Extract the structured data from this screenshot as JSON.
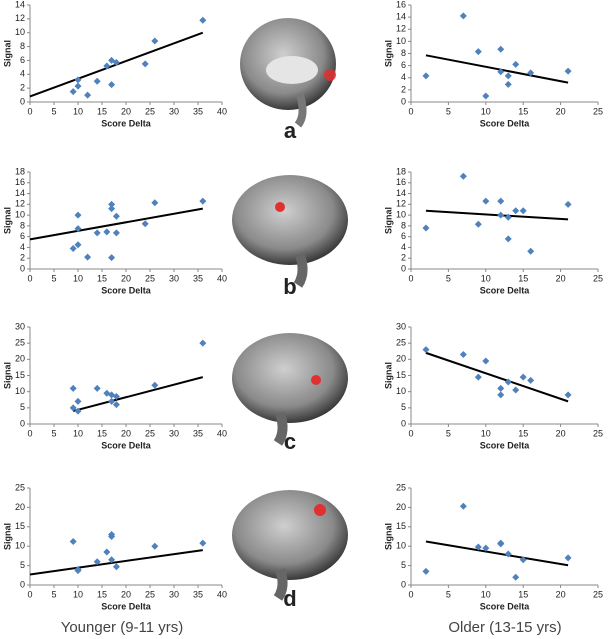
{
  "panels": [
    "a",
    "b",
    "c",
    "d"
  ],
  "columns": [
    "Younger (9-11 yrs)",
    "Older (13-15 yrs)"
  ],
  "chart_data": [
    {
      "type": "scatter",
      "x_label": "Score Delta",
      "y_label": "Signal",
      "color": "#4f81bd",
      "x": [
        9,
        10,
        10,
        12,
        14,
        16,
        17,
        17,
        18,
        24,
        26,
        36
      ],
      "values": [
        1.5,
        2.3,
        3.2,
        1,
        3,
        5.2,
        6,
        2.5,
        5.7,
        5.5,
        8.8,
        11.8
      ],
      "trendline": {
        "x": [
          0,
          36
        ],
        "values": [
          0.8,
          10
        ],
        "color": "#000000"
      },
      "xlim": [
        0,
        40
      ],
      "xticks": [
        0,
        5,
        10,
        15,
        20,
        25,
        30,
        35,
        40
      ],
      "ylim": [
        0,
        14
      ],
      "yticks": [
        0,
        2,
        4,
        6,
        8,
        10,
        12,
        14
      ]
    },
    {
      "type": "scatter",
      "x_label": "Score Delta",
      "y_label": "Signal",
      "color": "#4f81bd",
      "x": [
        2,
        7,
        9,
        10,
        12,
        12,
        13,
        13,
        14,
        16,
        21
      ],
      "values": [
        4.3,
        14.2,
        8.3,
        1,
        8.7,
        5,
        4.3,
        2.9,
        6.2,
        4.8,
        5.1
      ],
      "trendline": {
        "x": [
          2,
          21
        ],
        "values": [
          7.7,
          3.2
        ],
        "color": "#000000"
      },
      "xlim": [
        0,
        25
      ],
      "xticks": [
        0,
        5,
        10,
        15,
        20,
        25
      ],
      "ylim": [
        0,
        16
      ],
      "yticks": [
        0,
        2,
        4,
        6,
        8,
        10,
        12,
        14,
        16
      ]
    },
    {
      "type": "scatter",
      "x_label": "Score Delta",
      "y_label": "Signal",
      "color": "#4f81bd",
      "x": [
        9,
        10,
        10,
        10,
        12,
        14,
        16,
        17,
        17,
        17,
        18,
        18,
        24,
        26,
        36
      ],
      "values": [
        3.8,
        10,
        7.5,
        4.5,
        2.2,
        6.7,
        6.9,
        12,
        11.2,
        2.1,
        6.7,
        9.8,
        8.4,
        12.3,
        12.6
      ],
      "trendline": {
        "x": [
          0,
          36
        ],
        "values": [
          5.5,
          11.2
        ],
        "color": "#000000"
      },
      "xlim": [
        0,
        40
      ],
      "xticks": [
        0,
        5,
        10,
        15,
        20,
        25,
        30,
        35,
        40
      ],
      "ylim": [
        0,
        18
      ],
      "yticks": [
        0,
        2,
        4,
        6,
        8,
        10,
        12,
        14,
        16,
        18
      ]
    },
    {
      "type": "scatter",
      "x_label": "Score Delta",
      "y_label": "Signal",
      "color": "#4f81bd",
      "x": [
        2,
        7,
        9,
        10,
        12,
        12,
        13,
        13,
        14,
        15,
        16,
        21
      ],
      "values": [
        7.6,
        17.2,
        8.3,
        12.6,
        12.6,
        10,
        9.6,
        5.6,
        10.8,
        10.8,
        3.3,
        12
      ],
      "trendline": {
        "x": [
          2,
          21
        ],
        "values": [
          10.8,
          9.2
        ],
        "color": "#000000"
      },
      "xlim": [
        0,
        25
      ],
      "xticks": [
        0,
        5,
        10,
        15,
        20,
        25
      ],
      "ylim": [
        0,
        18
      ],
      "yticks": [
        0,
        2,
        4,
        6,
        8,
        10,
        12,
        14,
        16,
        18
      ]
    },
    {
      "type": "scatter",
      "x_label": "Score Delta",
      "y_label": "Signal",
      "color": "#4f81bd",
      "x": [
        9,
        9,
        10,
        10,
        14,
        16,
        17,
        17,
        18,
        18,
        26,
        36
      ],
      "values": [
        11,
        5,
        4,
        7,
        11,
        9.5,
        9,
        7,
        8.5,
        6,
        12,
        25
      ],
      "trendline": {
        "x": [
          9,
          36
        ],
        "values": [
          4,
          14.5
        ],
        "color": "#000000"
      },
      "xlim": [
        0,
        40
      ],
      "xticks": [
        0,
        5,
        10,
        15,
        20,
        25,
        30,
        35,
        40
      ],
      "ylim": [
        0,
        30
      ],
      "yticks": [
        0,
        5,
        10,
        15,
        20,
        25,
        30
      ]
    },
    {
      "type": "scatter",
      "x_label": "Score Delta",
      "y_label": "Signal",
      "color": "#4f81bd",
      "x": [
        2,
        7,
        9,
        10,
        12,
        12,
        13,
        14,
        15,
        16,
        21
      ],
      "values": [
        23,
        21.5,
        14.5,
        19.5,
        11,
        9,
        13,
        10.5,
        14.5,
        13.5,
        9
      ],
      "trendline": {
        "x": [
          2,
          21
        ],
        "values": [
          22,
          7
        ],
        "color": "#000000"
      },
      "xlim": [
        0,
        25
      ],
      "xticks": [
        0,
        5,
        10,
        15,
        20,
        25
      ],
      "ylim": [
        0,
        30
      ],
      "yticks": [
        0,
        5,
        10,
        15,
        20,
        25,
        30
      ]
    },
    {
      "type": "scatter",
      "x_label": "Score Delta",
      "y_label": "Signal",
      "color": "#4f81bd",
      "x": [
        9,
        10,
        10,
        14,
        16,
        17,
        17,
        17,
        18,
        26,
        36
      ],
      "values": [
        11.2,
        4,
        3.7,
        6,
        8.5,
        13,
        12.5,
        6.5,
        4.7,
        10,
        10.8
      ],
      "trendline": {
        "x": [
          0,
          36
        ],
        "values": [
          2.7,
          9
        ],
        "color": "#000000"
      },
      "xlim": [
        0,
        40
      ],
      "xticks": [
        0,
        5,
        10,
        15,
        20,
        25,
        30,
        35,
        40
      ],
      "ylim": [
        0,
        25
      ],
      "yticks": [
        0,
        5,
        10,
        15,
        20,
        25
      ]
    },
    {
      "type": "scatter",
      "x_label": "Score Delta",
      "y_label": "Signal",
      "color": "#4f81bd",
      "x": [
        2,
        7,
        9,
        10,
        12,
        12,
        13,
        14,
        15,
        21
      ],
      "values": [
        3.5,
        20.3,
        9.8,
        9.5,
        10.6,
        10.8,
        8,
        2,
        6.5,
        7
      ],
      "trendline": {
        "x": [
          2,
          21
        ],
        "values": [
          11.2,
          5.1
        ],
        "color": "#000000"
      },
      "xlim": [
        0,
        25
      ],
      "xticks": [
        0,
        5,
        10,
        15,
        20,
        25
      ],
      "ylim": [
        0,
        25
      ],
      "yticks": [
        0,
        5,
        10,
        15,
        20,
        25
      ]
    }
  ]
}
